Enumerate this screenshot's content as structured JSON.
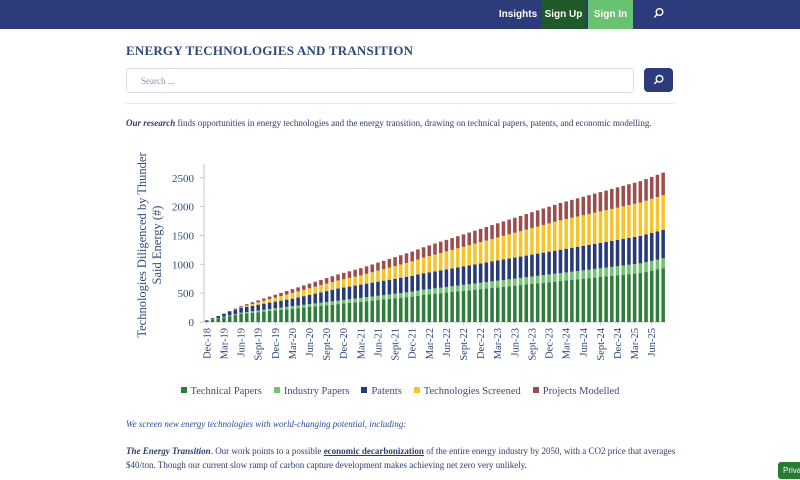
{
  "nav": {
    "insights": "Insights",
    "sign_up": "Sign Up",
    "sign_in": "Sign In",
    "search_icon": "search-icon"
  },
  "page": {
    "title": "ENERGY TECHNOLOGIES AND TRANSITION",
    "search_placeholder": "Search ...",
    "intro_lead": "Our research",
    "intro_rest": " finds opportunities in energy technologies and the energy transition, drawing on technical papers, patents, and economic modelling.",
    "screen_line": "We screen new energy technologies with world-changing potential, including:",
    "transition_lead": "The Energy Transition",
    "transition_pre": ". Our work points to a possible ",
    "transition_link": "economic decarbonization",
    "transition_post": " of the entire energy industry by 2050, with a CO2 price that averages $40/ton. Though our current slow ramp of carbon capture development makes achieving net zero very unlikely."
  },
  "privacy_label": "Priva",
  "colors": {
    "nav_bg": "#2b3b7c",
    "technical_papers": "#2f7d3a",
    "industry_papers": "#72c472",
    "patents": "#283a78",
    "technologies_screened": "#f5c52b",
    "projects_modelled": "#9a4e4e"
  },
  "chart_data": {
    "type": "bar",
    "stacked": true,
    "ylabel": "Technologies Diligenced by Thunder Said Energy (#)",
    "ylim": [
      0,
      2600
    ],
    "yticks": [
      0,
      500,
      1000,
      1500,
      2000,
      2500
    ],
    "xtick_labels": [
      "Dec-18",
      "Mar-19",
      "Jun-19",
      "Sept-19",
      "Dec-19",
      "Mar-20",
      "Jun-20",
      "Sept-20",
      "Dec-20",
      "Mar-21",
      "Jun-21",
      "Sept-21",
      "Dec-21",
      "Mar-22",
      "Jun-22",
      "Sept-22",
      "Dec-22",
      "Mar-23",
      "Jun-23",
      "Sept-23",
      "Dec-23",
      "Mar-24",
      "Jun-24",
      "Sept-24",
      "Dec-24",
      "Mar-25",
      "Jun-25"
    ],
    "categories": [
      "Dec-18",
      "Jan-19",
      "Feb-19",
      "Mar-19",
      "Apr-19",
      "May-19",
      "Jun-19",
      "Jul-19",
      "Aug-19",
      "Sept-19",
      "Oct-19",
      "Nov-19",
      "Dec-19",
      "Jan-20",
      "Feb-20",
      "Mar-20",
      "Apr-20",
      "May-20",
      "Jun-20",
      "Jul-20",
      "Aug-20",
      "Sept-20",
      "Oct-20",
      "Nov-20",
      "Dec-20",
      "Jan-21",
      "Feb-21",
      "Mar-21",
      "Apr-21",
      "May-21",
      "Jun-21",
      "Jul-21",
      "Aug-21",
      "Sept-21",
      "Oct-21",
      "Nov-21",
      "Dec-21",
      "Jan-22",
      "Feb-22",
      "Mar-22",
      "Apr-22",
      "May-22",
      "Jun-22",
      "Jul-22",
      "Aug-22",
      "Sept-22",
      "Oct-22",
      "Nov-22",
      "Dec-22",
      "Jan-23",
      "Feb-23",
      "Mar-23",
      "Apr-23",
      "May-23",
      "Jun-23",
      "Jul-23",
      "Aug-23",
      "Sept-23",
      "Oct-23",
      "Nov-23",
      "Dec-23",
      "Jan-24",
      "Feb-24",
      "Mar-24",
      "Apr-24",
      "May-24",
      "Jun-24",
      "Jul-24",
      "Aug-24",
      "Sept-24",
      "Oct-24",
      "Nov-24",
      "Dec-24",
      "Jan-25",
      "Feb-25",
      "Mar-25",
      "Apr-25",
      "May-25",
      "Jun-25",
      "Jul-25",
      "Aug-25"
    ],
    "series": [
      {
        "name": "Technical Papers",
        "color": "#2f7d3a",
        "values": [
          20,
          40,
          60,
          80,
          100,
          120,
          140,
          150,
          160,
          170,
          180,
          190,
          200,
          210,
          220,
          230,
          240,
          250,
          260,
          270,
          280,
          290,
          300,
          310,
          320,
          330,
          340,
          350,
          360,
          370,
          380,
          390,
          400,
          410,
          420,
          430,
          440,
          455,
          470,
          480,
          490,
          500,
          510,
          520,
          530,
          540,
          550,
          560,
          570,
          580,
          590,
          600,
          610,
          620,
          630,
          640,
          650,
          660,
          670,
          680,
          690,
          700,
          710,
          720,
          730,
          740,
          750,
          760,
          770,
          780,
          790,
          800,
          810,
          820,
          830,
          840,
          850,
          870,
          890,
          910,
          930
        ]
      },
      {
        "name": "Industry Papers",
        "color": "#72c472",
        "values": [
          3,
          6,
          9,
          12,
          15,
          18,
          21,
          24,
          27,
          30,
          33,
          36,
          38,
          40,
          42,
          44,
          46,
          48,
          50,
          52,
          54,
          56,
          58,
          60,
          62,
          64,
          66,
          68,
          70,
          72,
          74,
          76,
          78,
          80,
          82,
          84,
          86,
          88,
          90,
          92,
          94,
          96,
          98,
          100,
          102,
          104,
          106,
          108,
          110,
          112,
          114,
          116,
          118,
          120,
          122,
          124,
          126,
          128,
          130,
          132,
          134,
          136,
          138,
          140,
          142,
          144,
          146,
          148,
          150,
          152,
          154,
          156,
          158,
          160,
          162,
          164,
          166,
          168,
          170,
          172,
          174
        ]
      },
      {
        "name": "Patents",
        "color": "#283a78",
        "values": [
          10,
          20,
          35,
          50,
          65,
          75,
          85,
          90,
          95,
          100,
          105,
          110,
          115,
          120,
          125,
          130,
          140,
          150,
          160,
          170,
          180,
          190,
          200,
          210,
          215,
          220,
          225,
          230,
          235,
          240,
          245,
          250,
          255,
          260,
          265,
          270,
          275,
          280,
          285,
          290,
          295,
          300,
          305,
          310,
          315,
          320,
          325,
          330,
          335,
          340,
          345,
          350,
          355,
          360,
          365,
          370,
          375,
          380,
          385,
          390,
          395,
          400,
          405,
          410,
          415,
          420,
          425,
          430,
          435,
          440,
          445,
          450,
          455,
          460,
          465,
          470,
          475,
          480,
          485,
          490,
          495
        ]
      },
      {
        "name": "Technologies Screened",
        "color": "#f5c52b",
        "values": [
          0,
          0,
          0,
          0,
          0,
          5,
          10,
          20,
          30,
          40,
          50,
          60,
          70,
          80,
          90,
          100,
          105,
          110,
          115,
          120,
          125,
          130,
          135,
          140,
          145,
          150,
          155,
          160,
          170,
          180,
          190,
          200,
          210,
          220,
          230,
          240,
          250,
          260,
          270,
          280,
          290,
          300,
          310,
          320,
          330,
          340,
          350,
          360,
          370,
          380,
          390,
          400,
          410,
          420,
          430,
          440,
          450,
          460,
          470,
          480,
          490,
          500,
          510,
          515,
          520,
          525,
          530,
          535,
          540,
          545,
          550,
          555,
          560,
          565,
          570,
          575,
          580,
          585,
          590,
          595,
          600
        ]
      },
      {
        "name": "Projects Modelled",
        "color": "#9a4e4e",
        "values": [
          0,
          0,
          2,
          5,
          10,
          15,
          20,
          25,
          30,
          35,
          40,
          45,
          50,
          55,
          60,
          65,
          70,
          75,
          80,
          85,
          90,
          95,
          100,
          105,
          110,
          115,
          120,
          125,
          130,
          135,
          140,
          145,
          150,
          155,
          160,
          165,
          170,
          175,
          180,
          185,
          190,
          195,
          200,
          205,
          210,
          215,
          220,
          225,
          230,
          235,
          240,
          245,
          250,
          255,
          260,
          265,
          270,
          275,
          280,
          285,
          290,
          295,
          300,
          305,
          310,
          315,
          320,
          325,
          330,
          335,
          340,
          345,
          350,
          355,
          360,
          365,
          370,
          375,
          380,
          385,
          390
        ]
      }
    ]
  }
}
